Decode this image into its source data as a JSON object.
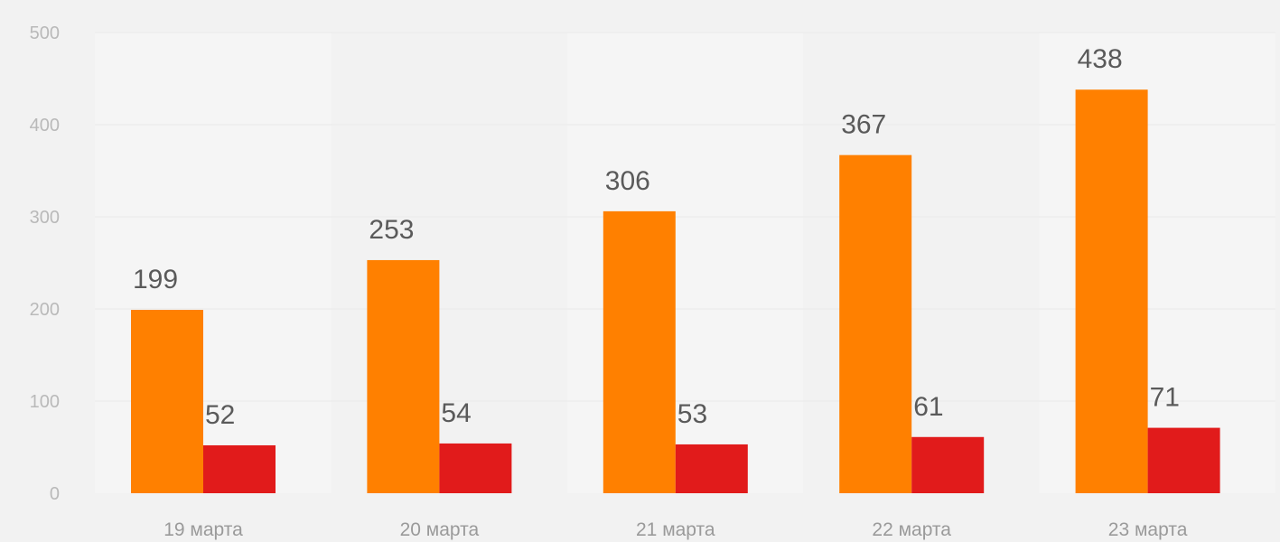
{
  "chart_data": {
    "type": "bar",
    "categories": [
      "19 марта",
      "20 марта",
      "21 марта",
      "22 марта",
      "23 марта"
    ],
    "series": [
      {
        "values": [
          199,
          253,
          306,
          367,
          438
        ],
        "color": "#ff8000"
      },
      {
        "values": [
          52,
          54,
          53,
          61,
          71
        ],
        "color": "#e11b1b"
      }
    ],
    "yticks": [
      0,
      100,
      200,
      300,
      400,
      500
    ],
    "ylim": [
      0,
      500
    ],
    "grid": true,
    "legend": "none",
    "title": "",
    "xlabel": "",
    "ylabel": ""
  }
}
